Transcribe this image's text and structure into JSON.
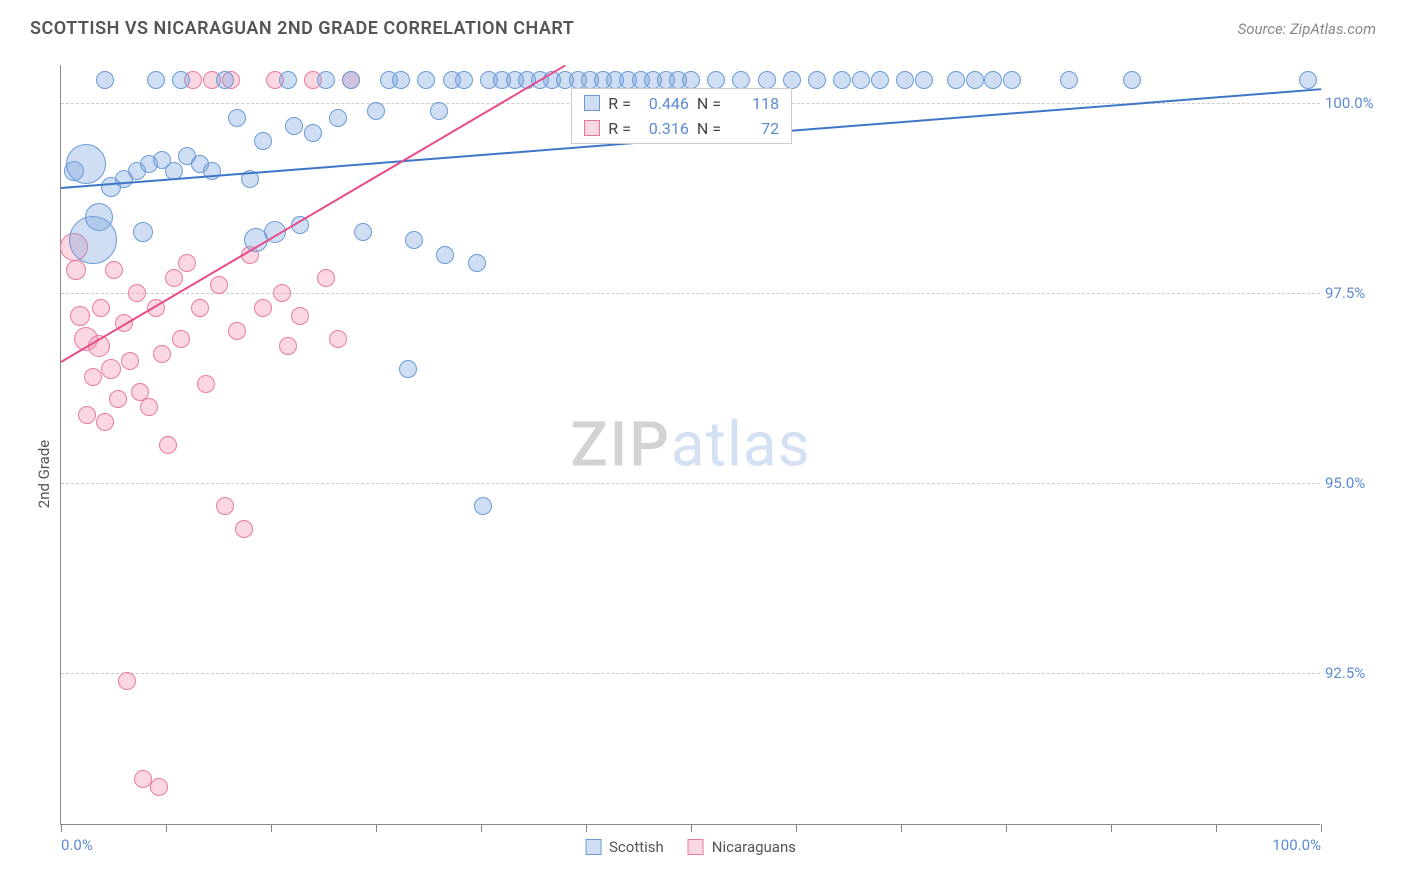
{
  "header": {
    "title": "SCOTTISH VS NICARAGUAN 2ND GRADE CORRELATION CHART",
    "source": "Source: ZipAtlas.com"
  },
  "watermark": {
    "part1": "ZIP",
    "part2": "atlas"
  },
  "chart": {
    "type": "scatter",
    "y_axis_label": "2nd Grade",
    "background_color": "#ffffff",
    "grid_color": "#cccccc",
    "axis_color": "#888888",
    "tick_label_color": "#5b8bd4",
    "xlim": [
      0,
      100
    ],
    "ylim": [
      90.5,
      100.5
    ],
    "y_ticks": [
      {
        "v": 92.5,
        "label": "92.5%"
      },
      {
        "v": 95.0,
        "label": "95.0%"
      },
      {
        "v": 97.5,
        "label": "97.5%"
      },
      {
        "v": 100.0,
        "label": "100.0%"
      }
    ],
    "x_ticks_major": [
      0,
      8.33,
      16.67,
      25,
      33.33,
      41.67,
      50,
      58.33,
      66.67,
      75,
      83.33,
      91.67,
      100
    ],
    "x_tick_labels": [
      {
        "v": 0,
        "label": "0.0%",
        "align": "left"
      },
      {
        "v": 100,
        "label": "100.0%",
        "align": "right"
      }
    ],
    "series": {
      "scottish": {
        "label": "Scottish",
        "fill": "rgba(120,160,220,0.35)",
        "stroke": "#6a9bd8",
        "trend_color": "#3d76c7",
        "trend": {
          "x1": 0,
          "y1": 98.9,
          "x2": 100,
          "y2": 100.2
        },
        "R": "0.446",
        "N": "118",
        "points": [
          {
            "x": 1,
            "y": 99.1,
            "r": 10
          },
          {
            "x": 2,
            "y": 99.2,
            "r": 20
          },
          {
            "x": 2.5,
            "y": 98.2,
            "r": 24
          },
          {
            "x": 3,
            "y": 98.5,
            "r": 14
          },
          {
            "x": 3.5,
            "y": 100.3,
            "r": 9
          },
          {
            "x": 4,
            "y": 98.9,
            "r": 10
          },
          {
            "x": 5,
            "y": 99.0,
            "r": 9
          },
          {
            "x": 6,
            "y": 99.1,
            "r": 9
          },
          {
            "x": 6.5,
            "y": 98.3,
            "r": 10
          },
          {
            "x": 7,
            "y": 99.2,
            "r": 9
          },
          {
            "x": 7.5,
            "y": 100.3,
            "r": 9
          },
          {
            "x": 8,
            "y": 99.25,
            "r": 9
          },
          {
            "x": 9,
            "y": 99.1,
            "r": 9
          },
          {
            "x": 9.5,
            "y": 100.3,
            "r": 9
          },
          {
            "x": 10,
            "y": 99.3,
            "r": 9
          },
          {
            "x": 11,
            "y": 99.2,
            "r": 9
          },
          {
            "x": 12,
            "y": 99.1,
            "r": 9
          },
          {
            "x": 13,
            "y": 100.3,
            "r": 9
          },
          {
            "x": 14,
            "y": 99.8,
            "r": 9
          },
          {
            "x": 15,
            "y": 99.0,
            "r": 9
          },
          {
            "x": 15.5,
            "y": 98.2,
            "r": 12
          },
          {
            "x": 16,
            "y": 99.5,
            "r": 9
          },
          {
            "x": 17,
            "y": 98.3,
            "r": 11
          },
          {
            "x": 18,
            "y": 100.3,
            "r": 9
          },
          {
            "x": 18.5,
            "y": 99.7,
            "r": 9
          },
          {
            "x": 19,
            "y": 98.4,
            "r": 9
          },
          {
            "x": 20,
            "y": 99.6,
            "r": 9
          },
          {
            "x": 21,
            "y": 100.3,
            "r": 9
          },
          {
            "x": 22,
            "y": 99.8,
            "r": 9
          },
          {
            "x": 23,
            "y": 100.3,
            "r": 9
          },
          {
            "x": 24,
            "y": 98.3,
            "r": 9
          },
          {
            "x": 25,
            "y": 99.9,
            "r": 9
          },
          {
            "x": 26,
            "y": 100.3,
            "r": 9
          },
          {
            "x": 27,
            "y": 100.3,
            "r": 9
          },
          {
            "x": 27.5,
            "y": 96.5,
            "r": 9
          },
          {
            "x": 28,
            "y": 98.2,
            "r": 9
          },
          {
            "x": 29,
            "y": 100.3,
            "r": 9
          },
          {
            "x": 30,
            "y": 99.9,
            "r": 9
          },
          {
            "x": 30.5,
            "y": 98.0,
            "r": 9
          },
          {
            "x": 31,
            "y": 100.3,
            "r": 9
          },
          {
            "x": 32,
            "y": 100.3,
            "r": 9
          },
          {
            "x": 33,
            "y": 97.9,
            "r": 9
          },
          {
            "x": 33.5,
            "y": 94.7,
            "r": 9
          },
          {
            "x": 34,
            "y": 100.3,
            "r": 9
          },
          {
            "x": 35,
            "y": 100.3,
            "r": 9
          },
          {
            "x": 36,
            "y": 100.3,
            "r": 9
          },
          {
            "x": 37,
            "y": 100.3,
            "r": 9
          },
          {
            "x": 38,
            "y": 100.3,
            "r": 9
          },
          {
            "x": 39,
            "y": 100.3,
            "r": 9
          },
          {
            "x": 40,
            "y": 100.3,
            "r": 9
          },
          {
            "x": 41,
            "y": 100.3,
            "r": 9
          },
          {
            "x": 42,
            "y": 100.3,
            "r": 9
          },
          {
            "x": 43,
            "y": 100.3,
            "r": 9
          },
          {
            "x": 44,
            "y": 100.3,
            "r": 9
          },
          {
            "x": 45,
            "y": 100.3,
            "r": 9
          },
          {
            "x": 46,
            "y": 100.3,
            "r": 9
          },
          {
            "x": 47,
            "y": 100.3,
            "r": 9
          },
          {
            "x": 48,
            "y": 100.3,
            "r": 9
          },
          {
            "x": 49,
            "y": 100.3,
            "r": 9
          },
          {
            "x": 50,
            "y": 100.3,
            "r": 9
          },
          {
            "x": 52,
            "y": 100.3,
            "r": 9
          },
          {
            "x": 54,
            "y": 100.3,
            "r": 9
          },
          {
            "x": 56,
            "y": 100.3,
            "r": 9
          },
          {
            "x": 58,
            "y": 100.3,
            "r": 9
          },
          {
            "x": 60,
            "y": 100.3,
            "r": 9
          },
          {
            "x": 62,
            "y": 100.3,
            "r": 9
          },
          {
            "x": 63.5,
            "y": 100.3,
            "r": 9
          },
          {
            "x": 65,
            "y": 100.3,
            "r": 9
          },
          {
            "x": 67,
            "y": 100.3,
            "r": 9
          },
          {
            "x": 68.5,
            "y": 100.3,
            "r": 9
          },
          {
            "x": 71,
            "y": 100.3,
            "r": 9
          },
          {
            "x": 72.5,
            "y": 100.3,
            "r": 9
          },
          {
            "x": 74,
            "y": 100.3,
            "r": 9
          },
          {
            "x": 75.5,
            "y": 100.3,
            "r": 9
          },
          {
            "x": 80,
            "y": 100.3,
            "r": 9
          },
          {
            "x": 85,
            "y": 100.3,
            "r": 9
          },
          {
            "x": 99,
            "y": 100.3,
            "r": 9
          }
        ]
      },
      "nicaraguans": {
        "label": "Nicaraguans",
        "fill": "rgba(240,140,170,0.35)",
        "stroke": "#e87ba2",
        "trend_color": "#e64b8a",
        "trend": {
          "x1": 0,
          "y1": 96.6,
          "x2": 40,
          "y2": 100.5
        },
        "R": "0.316",
        "N": "72",
        "points": [
          {
            "x": 1,
            "y": 98.1,
            "r": 14
          },
          {
            "x": 1.2,
            "y": 97.8,
            "r": 10
          },
          {
            "x": 1.5,
            "y": 97.2,
            "r": 10
          },
          {
            "x": 2,
            "y": 96.9,
            "r": 12
          },
          {
            "x": 2.1,
            "y": 95.9,
            "r": 9
          },
          {
            "x": 2.5,
            "y": 96.4,
            "r": 9
          },
          {
            "x": 3,
            "y": 96.8,
            "r": 11
          },
          {
            "x": 3.2,
            "y": 97.3,
            "r": 9
          },
          {
            "x": 3.5,
            "y": 95.8,
            "r": 9
          },
          {
            "x": 4,
            "y": 96.5,
            "r": 10
          },
          {
            "x": 4.2,
            "y": 97.8,
            "r": 9
          },
          {
            "x": 4.5,
            "y": 96.1,
            "r": 9
          },
          {
            "x": 5,
            "y": 97.1,
            "r": 9
          },
          {
            "x": 5.2,
            "y": 92.4,
            "r": 9
          },
          {
            "x": 5.5,
            "y": 96.6,
            "r": 9
          },
          {
            "x": 6,
            "y": 97.5,
            "r": 9
          },
          {
            "x": 6.3,
            "y": 96.2,
            "r": 9
          },
          {
            "x": 6.5,
            "y": 91.1,
            "r": 9
          },
          {
            "x": 7,
            "y": 96.0,
            "r": 9
          },
          {
            "x": 7.5,
            "y": 97.3,
            "r": 9
          },
          {
            "x": 7.8,
            "y": 91.0,
            "r": 9
          },
          {
            "x": 8,
            "y": 96.7,
            "r": 9
          },
          {
            "x": 8.5,
            "y": 95.5,
            "r": 9
          },
          {
            "x": 9,
            "y": 97.7,
            "r": 9
          },
          {
            "x": 9.5,
            "y": 96.9,
            "r": 9
          },
          {
            "x": 10,
            "y": 97.9,
            "r": 9
          },
          {
            "x": 10.5,
            "y": 100.3,
            "r": 9
          },
          {
            "x": 11,
            "y": 97.3,
            "r": 9
          },
          {
            "x": 11.5,
            "y": 96.3,
            "r": 9
          },
          {
            "x": 12,
            "y": 100.3,
            "r": 9
          },
          {
            "x": 12.5,
            "y": 97.6,
            "r": 9
          },
          {
            "x": 13,
            "y": 94.7,
            "r": 9
          },
          {
            "x": 13.5,
            "y": 100.3,
            "r": 9
          },
          {
            "x": 14,
            "y": 97.0,
            "r": 9
          },
          {
            "x": 14.5,
            "y": 94.4,
            "r": 9
          },
          {
            "x": 15,
            "y": 98.0,
            "r": 9
          },
          {
            "x": 16,
            "y": 97.3,
            "r": 9
          },
          {
            "x": 17,
            "y": 100.3,
            "r": 9
          },
          {
            "x": 17.5,
            "y": 97.5,
            "r": 9
          },
          {
            "x": 18,
            "y": 96.8,
            "r": 9
          },
          {
            "x": 19,
            "y": 97.2,
            "r": 9
          },
          {
            "x": 20,
            "y": 100.3,
            "r": 9
          },
          {
            "x": 21,
            "y": 97.7,
            "r": 9
          },
          {
            "x": 22,
            "y": 96.9,
            "r": 9
          },
          {
            "x": 23,
            "y": 100.3,
            "r": 9
          }
        ]
      }
    },
    "legend_top_pos": {
      "left_pct": 40.5,
      "top_y": 100.2
    },
    "legend_bottom": [
      {
        "key": "scottish"
      },
      {
        "key": "nicaraguans"
      }
    ]
  }
}
